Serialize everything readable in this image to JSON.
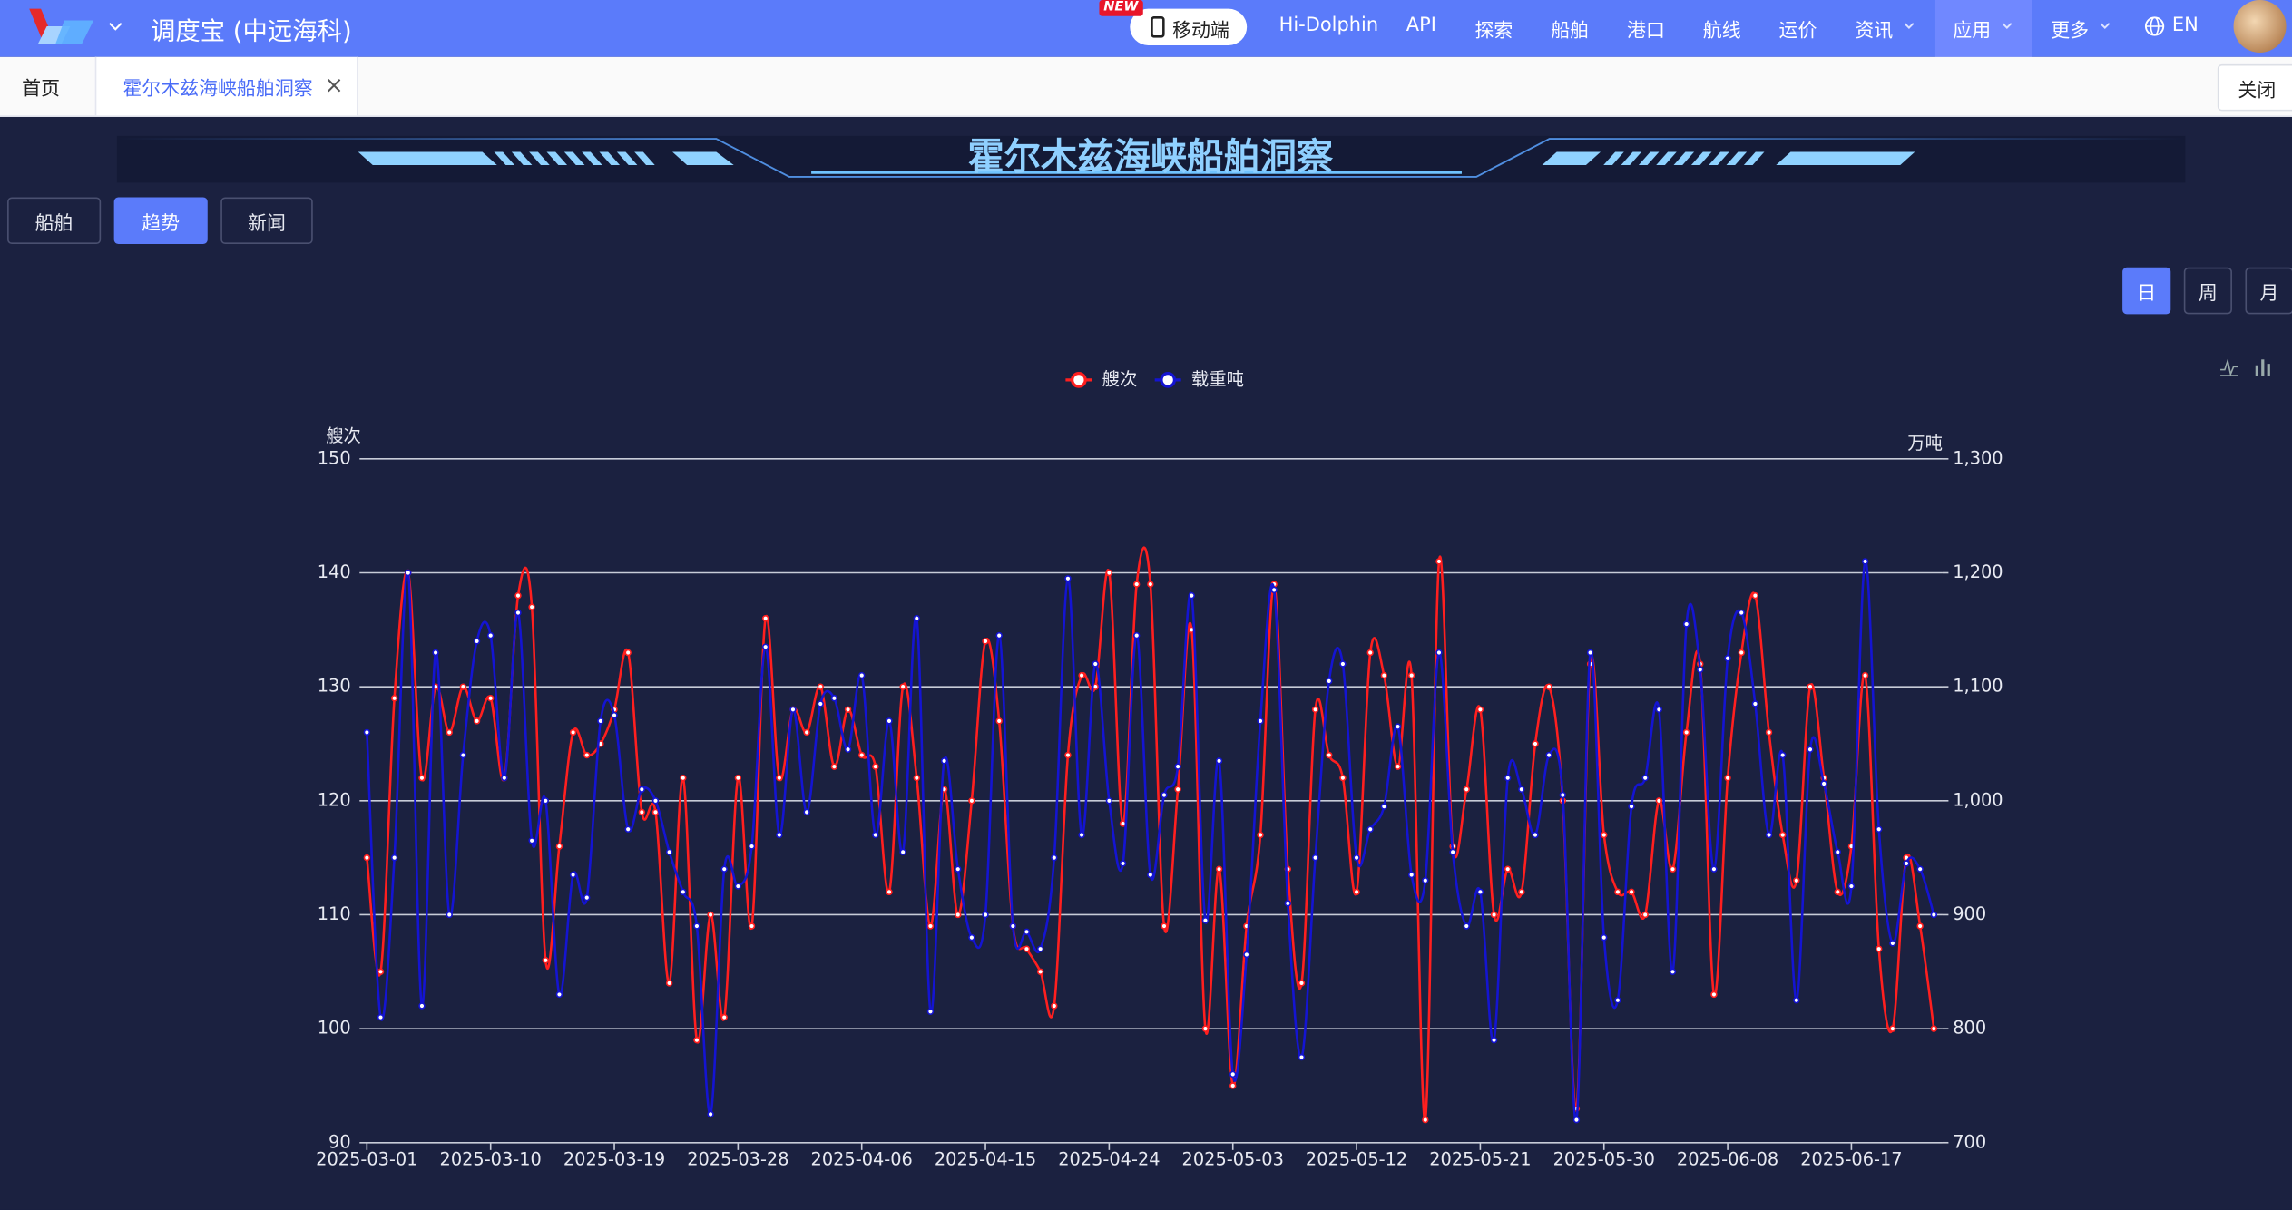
{
  "header": {
    "brand": "调度宝 (中远海科)",
    "badge": "NEW",
    "mobile": "移动端",
    "nav": [
      "Hi-Dolphin",
      "API",
      "探索",
      "船舶",
      "港口",
      "航线",
      "运价",
      "资讯",
      "应用",
      "更多"
    ],
    "lang": "EN"
  },
  "tabs": {
    "items": [
      "首页",
      "霍尔木兹海峡船舶洞察"
    ],
    "close": "关闭"
  },
  "page_title": "霍尔木兹海峡船舶洞察",
  "subtabs": [
    "船舶",
    "趋势",
    "新闻"
  ],
  "periods": [
    "日",
    "周",
    "月"
  ],
  "chart_data": {
    "type": "line",
    "y_label": "艘次",
    "y2_label": "万吨",
    "categories": [
      "2025-03-01",
      null,
      null,
      null,
      null,
      null,
      null,
      null,
      null,
      "2025-03-10",
      null,
      null,
      null,
      null,
      null,
      null,
      null,
      null,
      "2025-03-19",
      null,
      null,
      null,
      null,
      null,
      null,
      null,
      null,
      "2025-03-28",
      null,
      null,
      null,
      null,
      null,
      null,
      null,
      null,
      "2025-04-06",
      null,
      null,
      null,
      null,
      null,
      null,
      null,
      null,
      "2025-04-15",
      null,
      null,
      null,
      null,
      null,
      null,
      null,
      null,
      "2025-04-24",
      null,
      null,
      null,
      null,
      null,
      null,
      null,
      null,
      "2025-05-03",
      null,
      null,
      null,
      null,
      null,
      null,
      null,
      null,
      "2025-05-12",
      null,
      null,
      null,
      null,
      null,
      null,
      null,
      null,
      "2025-05-21",
      null,
      null,
      null,
      null,
      null,
      null,
      null,
      null,
      "2025-05-30",
      null,
      null,
      null,
      null,
      null,
      null,
      null,
      null,
      "2025-06-08",
      null,
      null,
      null,
      null,
      null,
      null,
      null,
      null,
      "2025-06-17",
      null,
      null,
      null,
      null,
      null,
      null
    ],
    "series": [
      {
        "name": "艘次",
        "color": "#ff1f1f",
        "values": [
          115,
          105,
          129,
          140,
          122,
          130,
          126,
          130,
          127,
          129,
          122,
          138,
          137,
          106,
          116,
          126,
          124,
          125,
          128,
          133,
          119,
          119,
          104,
          122,
          99,
          110,
          101,
          122,
          109,
          136,
          122,
          128,
          126,
          130,
          123,
          128,
          124,
          123,
          112,
          130,
          122,
          109,
          121,
          110,
          120,
          134,
          127,
          109,
          107,
          105,
          102,
          124,
          131,
          130,
          140,
          118,
          139,
          139,
          109,
          121,
          135,
          100,
          114,
          95,
          109,
          117,
          139,
          114,
          104,
          128,
          124,
          122,
          112,
          133,
          131,
          123,
          131,
          92,
          141,
          116,
          121,
          128,
          110,
          114,
          112,
          125,
          130,
          120,
          93,
          132,
          117,
          112,
          112,
          110,
          120,
          114,
          126,
          132,
          103,
          122,
          133,
          138,
          126,
          117,
          113,
          130,
          122,
          112,
          116,
          131,
          107,
          100,
          115,
          109,
          100
        ]
      },
      {
        "name": "载重吨",
        "color": "#1414d2",
        "axis": "y2",
        "values": [
          1060,
          810,
          950,
          1200,
          820,
          1130,
          900,
          1040,
          1140,
          1145,
          1020,
          1165,
          965,
          1000,
          830,
          935,
          915,
          1070,
          1075,
          975,
          1010,
          1000,
          955,
          920,
          890,
          725,
          940,
          925,
          960,
          1135,
          970,
          1080,
          990,
          1085,
          1090,
          1045,
          1110,
          970,
          1070,
          955,
          1160,
          815,
          1035,
          940,
          880,
          900,
          1145,
          890,
          885,
          870,
          950,
          1195,
          970,
          1120,
          1000,
          945,
          1145,
          935,
          1005,
          1030,
          1180,
          895,
          1035,
          760,
          865,
          1070,
          1185,
          910,
          775,
          950,
          1105,
          1120,
          950,
          975,
          995,
          1065,
          935,
          930,
          1130,
          955,
          890,
          920,
          790,
          1020,
          1010,
          970,
          1040,
          1005,
          720,
          1130,
          880,
          825,
          995,
          1020,
          1080,
          850,
          1155,
          1115,
          940,
          1125,
          1165,
          1085,
          970,
          1040,
          825,
          1045,
          1015,
          955,
          925,
          1210,
          975,
          875,
          945,
          940,
          900
        ]
      }
    ],
    "ylim": [
      90,
      150
    ],
    "yticks": [
      90,
      100,
      110,
      120,
      130,
      140,
      150
    ],
    "y2lim": [
      700,
      1300
    ],
    "y2ticks": [
      700,
      800,
      900,
      {
        "value": 1000,
        "label": "1,000"
      },
      {
        "value": 1100,
        "label": "1,100"
      },
      {
        "value": 1200,
        "label": "1,200"
      },
      {
        "value": 1300,
        "label": "1,300"
      }
    ],
    "grid": true,
    "legend": "top"
  }
}
